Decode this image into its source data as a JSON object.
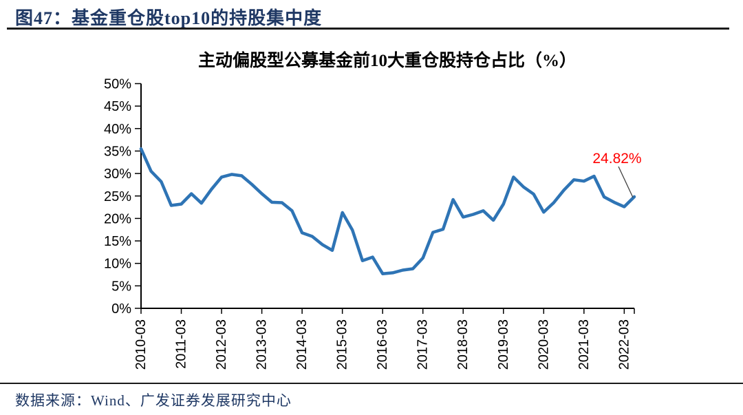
{
  "header": {
    "title": "图47：基金重仓股top10的持股集中度"
  },
  "footer": {
    "source": "数据来源：Wind、广发证券发展研究中心"
  },
  "colors": {
    "header_text": "#1F3864",
    "line": "#2E74B5",
    "annotation": "#FF0000",
    "axis": "#000000",
    "rule": "#1a1a1a"
  },
  "chart_data": {
    "type": "line",
    "title": "主动偏股型公募基金前10大重仓股持仓占比（%）",
    "xlabel": "",
    "ylabel": "",
    "ylim": [
      0,
      50
    ],
    "grid": false,
    "legend": "none",
    "line_color": "#2E74B5",
    "x": [
      "2010-03",
      "2010-06",
      "2010-09",
      "2010-12",
      "2011-03",
      "2011-06",
      "2011-09",
      "2011-12",
      "2012-03",
      "2012-06",
      "2012-09",
      "2012-12",
      "2013-03",
      "2013-06",
      "2013-09",
      "2013-12",
      "2014-03",
      "2014-06",
      "2014-09",
      "2014-12",
      "2015-03",
      "2015-06",
      "2015-09",
      "2015-12",
      "2016-03",
      "2016-06",
      "2016-09",
      "2016-12",
      "2017-03",
      "2017-06",
      "2017-09",
      "2017-12",
      "2018-03",
      "2018-06",
      "2018-09",
      "2018-12",
      "2019-03",
      "2019-06",
      "2019-09",
      "2019-12",
      "2020-03",
      "2020-06",
      "2020-09",
      "2020-12",
      "2021-03",
      "2021-06",
      "2021-09",
      "2021-12",
      "2022-03",
      "2022-06"
    ],
    "values": [
      35.5,
      30.5,
      28.2,
      22.9,
      23.2,
      25.5,
      23.4,
      26.5,
      29.2,
      29.8,
      29.5,
      27.6,
      25.5,
      23.6,
      23.5,
      21.7,
      16.8,
      16.0,
      14.2,
      12.9,
      21.3,
      17.4,
      10.6,
      11.4,
      7.7,
      7.9,
      8.5,
      8.8,
      11.2,
      16.9,
      17.6,
      24.2,
      20.3,
      20.9,
      21.7,
      19.6,
      23.2,
      29.2,
      27.0,
      25.4,
      21.4,
      23.5,
      26.3,
      28.6,
      28.3,
      29.4,
      24.8,
      23.6,
      22.6,
      24.82
    ],
    "x_tick_labels": [
      "2010-03",
      "2011-03",
      "2012-03",
      "2013-03",
      "2014-03",
      "2015-03",
      "2016-03",
      "2017-03",
      "2018-03",
      "2019-03",
      "2020-03",
      "2021-03",
      "2022-03"
    ],
    "y_ticks": [
      0,
      5,
      10,
      15,
      20,
      25,
      30,
      35,
      40,
      45,
      50
    ],
    "y_tick_labels": [
      "0%",
      "5%",
      "10%",
      "15%",
      "20%",
      "25%",
      "30%",
      "35%",
      "40%",
      "45%",
      "50%"
    ],
    "annotation": {
      "text": "24.82%",
      "value": 24.82,
      "x": "2022-06",
      "color": "#FF0000"
    }
  }
}
